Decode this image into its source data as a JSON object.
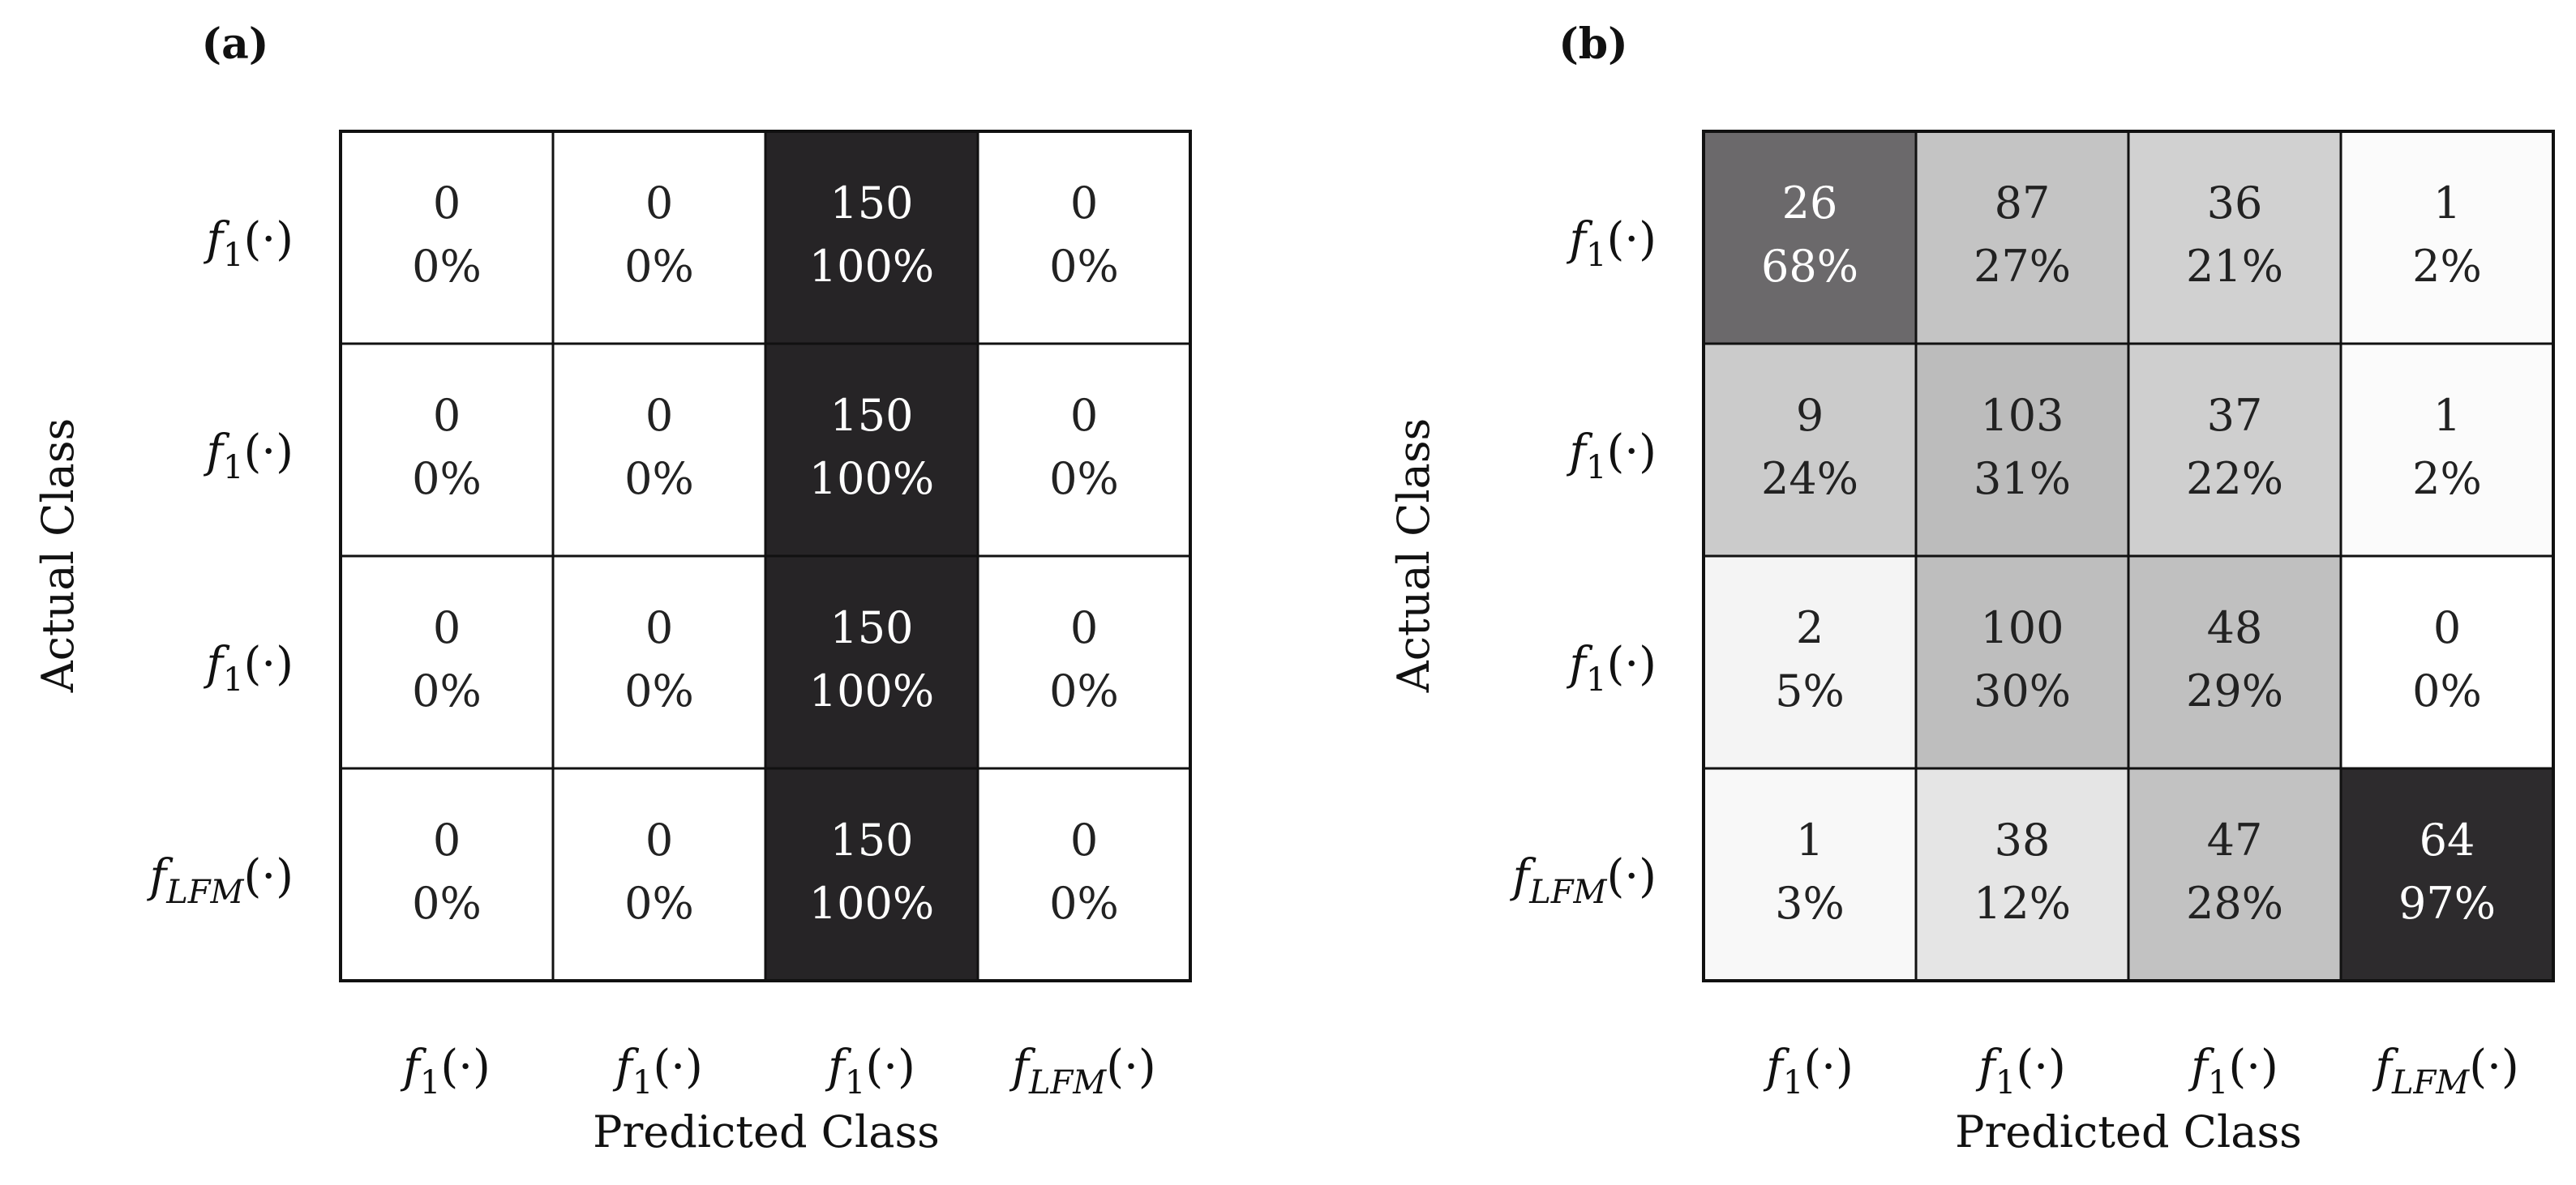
{
  "chart_data": [
    {
      "type": "heatmap",
      "panel_label": "(a)",
      "xlabel": "Predicted Class",
      "ylabel": "Actual Class",
      "categories_x": [
        "f1(·)",
        "f1(·)",
        "f1(·)",
        "fLFM(·)"
      ],
      "categories_y": [
        "f1(·)",
        "f1(·)",
        "f1(·)",
        "fLFM(·)"
      ],
      "counts": [
        [
          0,
          0,
          150,
          0
        ],
        [
          0,
          0,
          150,
          0
        ],
        [
          0,
          0,
          150,
          0
        ],
        [
          0,
          0,
          150,
          0
        ]
      ],
      "percents": [
        [
          "0%",
          "0%",
          "100%",
          "0%"
        ],
        [
          "0%",
          "0%",
          "100%",
          "0%"
        ],
        [
          "0%",
          "0%",
          "100%",
          "0%"
        ],
        [
          "0%",
          "0%",
          "100%",
          "0%"
        ]
      ],
      "percent_values": [
        [
          0,
          0,
          100,
          0
        ],
        [
          0,
          0,
          100,
          0
        ],
        [
          0,
          0,
          100,
          0
        ],
        [
          0,
          0,
          100,
          0
        ]
      ]
    },
    {
      "type": "heatmap",
      "panel_label": "(b)",
      "xlabel": "Predicted Class",
      "ylabel": "Actual Class",
      "categories_x": [
        "f1(·)",
        "f1(·)",
        "f1(·)",
        "fLFM(·)"
      ],
      "categories_y": [
        "f1(·)",
        "f1(·)",
        "f1(·)",
        "fLFM(·)"
      ],
      "counts": [
        [
          26,
          87,
          36,
          1
        ],
        [
          9,
          103,
          37,
          1
        ],
        [
          2,
          100,
          48,
          0
        ],
        [
          1,
          38,
          47,
          64
        ]
      ],
      "percents": [
        [
          "68%",
          "27%",
          "21%",
          "2%"
        ],
        [
          "24%",
          "31%",
          "22%",
          "2%"
        ],
        [
          "5%",
          "30%",
          "29%",
          "0%"
        ],
        [
          "3%",
          "12%",
          "28%",
          "97%"
        ]
      ],
      "percent_values": [
        [
          68,
          27,
          21,
          2
        ],
        [
          24,
          31,
          22,
          2
        ],
        [
          5,
          30,
          29,
          0
        ],
        [
          3,
          12,
          28,
          97
        ]
      ]
    }
  ]
}
